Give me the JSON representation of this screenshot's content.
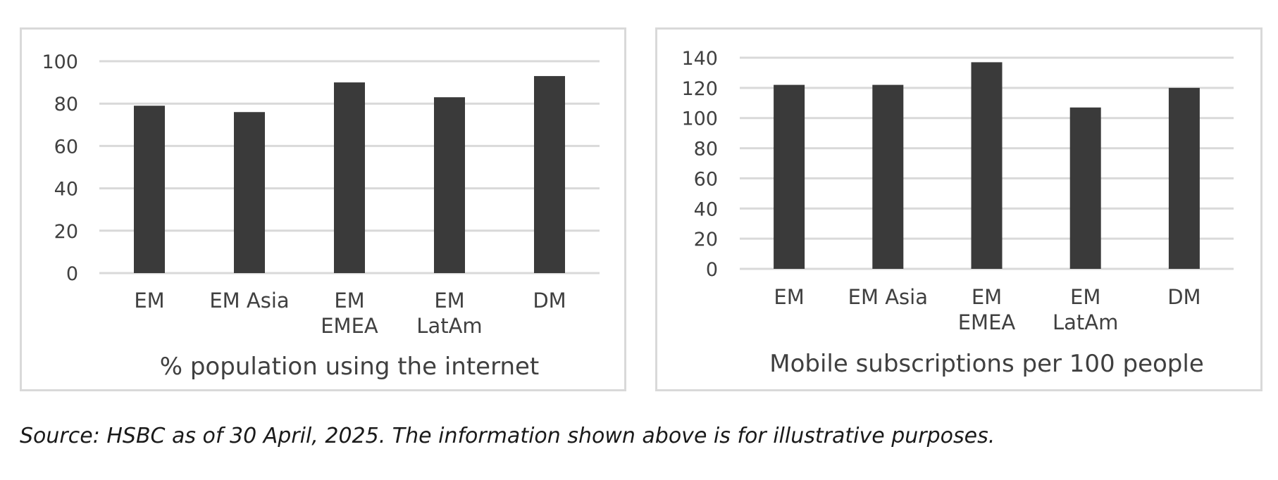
{
  "chart_data": [
    {
      "type": "bar",
      "categories": [
        "EM",
        "EM Asia",
        "EM EMEA",
        "EM LatAm",
        "DM"
      ],
      "category_lines": [
        [
          "EM"
        ],
        [
          "EM Asia"
        ],
        [
          "EM",
          "EMEA"
        ],
        [
          "EM",
          "LatAm"
        ],
        [
          "DM"
        ]
      ],
      "values": [
        79,
        76,
        90,
        83,
        93
      ],
      "title": "",
      "xlabel": "% population using the internet",
      "ylabel": "",
      "ylim": [
        0,
        100
      ],
      "yticks": [
        0,
        20,
        40,
        60,
        80,
        100
      ],
      "grid": "horizontal",
      "legend": "none"
    },
    {
      "type": "bar",
      "categories": [
        "EM",
        "EM Asia",
        "EM EMEA",
        "EM LatAm",
        "DM"
      ],
      "category_lines": [
        [
          "EM"
        ],
        [
          "EM Asia"
        ],
        [
          "EM",
          "EMEA"
        ],
        [
          "EM",
          "LatAm"
        ],
        [
          "DM"
        ]
      ],
      "values": [
        122,
        122,
        137,
        107,
        120
      ],
      "title": "",
      "xlabel": "Mobile subscriptions per 100 people",
      "ylabel": "",
      "ylim": [
        0,
        140
      ],
      "yticks": [
        0,
        20,
        40,
        60,
        80,
        100,
        120,
        140
      ],
      "grid": "horizontal",
      "legend": "none"
    }
  ],
  "colors": {
    "bar": "#3a3a3a",
    "grid": "#d9d9d9",
    "frame": "#d9d9d9",
    "text": "#404040"
  },
  "source_note": "Source: HSBC as of 30 April, 2025. The information shown above is for illustrative purposes."
}
